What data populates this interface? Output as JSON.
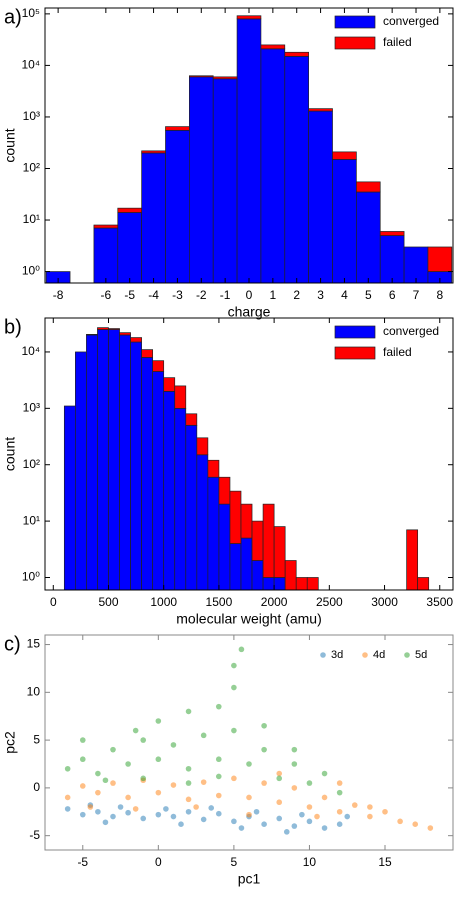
{
  "chart_data": [
    {
      "type": "histogram",
      "panel_label": "a)",
      "x_label": "charge",
      "y_label": "count",
      "stacked": true,
      "log_y": true,
      "legend": "upper right",
      "bins": [
        -8.5,
        -7.5,
        -6.5,
        -5.5,
        -4.5,
        -3.5,
        -2.5,
        -1.5,
        -0.5,
        0.5,
        1.5,
        2.5,
        3.5,
        4.5,
        5.5,
        6.5,
        7.5,
        8.5
      ],
      "series": [
        {
          "name": "converged",
          "color": "#0000ff",
          "values": [
            1,
            0,
            7,
            14,
            200,
            550,
            6000,
            5500,
            80000,
            21000,
            15000,
            1300,
            150,
            35,
            5,
            3,
            1
          ]
        },
        {
          "name": "failed",
          "color": "#ff0000",
          "values": [
            0,
            0,
            1,
            3,
            20,
            100,
            300,
            500,
            12000,
            4000,
            3000,
            150,
            60,
            20,
            1,
            0,
            2
          ]
        }
      ],
      "xlim": [
        -8.55,
        8.55
      ],
      "xticks": [
        -8,
        -6,
        -5,
        -4,
        -3,
        -2,
        -1,
        0,
        1,
        2,
        3,
        4,
        5,
        6,
        7,
        8
      ],
      "ylim": [
        0.6,
        130000
      ],
      "yticks": [
        {
          "value": 1,
          "label": "10⁰"
        },
        {
          "value": 10,
          "label": "10¹"
        },
        {
          "value": 100,
          "label": "10²"
        },
        {
          "value": 1000,
          "label": "10³"
        },
        {
          "value": 10000,
          "label": "10⁴"
        },
        {
          "value": 100000,
          "label": "10⁵"
        }
      ]
    },
    {
      "type": "histogram",
      "panel_label": "b)",
      "x_label": "molecular weight (amu)",
      "y_label": "count",
      "stacked": true,
      "log_y": true,
      "legend": "upper right",
      "bins": [
        100,
        200,
        300,
        400,
        500,
        600,
        700,
        800,
        900,
        1000,
        1100,
        1200,
        1300,
        1400,
        1500,
        1600,
        1700,
        1800,
        1900,
        2000,
        2100,
        2200,
        2300,
        2400,
        2500,
        2600,
        2700,
        2800,
        2900,
        3000,
        3100,
        3200,
        3300,
        3400,
        3500
      ],
      "series": [
        {
          "name": "converged",
          "color": "#0000ff",
          "values": [
            1100,
            10000,
            20000,
            25000,
            25000,
            20000,
            15000,
            8000,
            4500,
            2000,
            1000,
            500,
            150,
            60,
            20,
            4,
            5,
            2,
            1,
            1,
            0,
            0,
            0,
            0,
            0,
            0,
            0,
            0,
            0,
            0,
            0,
            0,
            0,
            0
          ]
        },
        {
          "name": "failed",
          "color": "#ff0000",
          "values": [
            0,
            0,
            500,
            2000,
            1000,
            2000,
            3000,
            3000,
            2500,
            1500,
            1500,
            300,
            150,
            60,
            40,
            30,
            15,
            8,
            19,
            7,
            2,
            1,
            1,
            0,
            0,
            0,
            0,
            0,
            0,
            0,
            0,
            7,
            1,
            0
          ]
        }
      ],
      "xlim": [
        -75,
        3620
      ],
      "xticks": [
        0,
        500,
        1000,
        1500,
        2000,
        2500,
        3000,
        3500
      ],
      "ylim": [
        0.6,
        40000
      ],
      "yticks": [
        {
          "value": 1,
          "label": "10⁰"
        },
        {
          "value": 10,
          "label": "10¹"
        },
        {
          "value": 100,
          "label": "10²"
        },
        {
          "value": 1000,
          "label": "10³"
        },
        {
          "value": 10000,
          "label": "10⁴"
        }
      ]
    },
    {
      "type": "scatter",
      "panel_label": "c)",
      "x_label": "pc1",
      "y_label": "pc2",
      "log_y": false,
      "legend": "upper right",
      "opacity": 0.5,
      "series": [
        {
          "name": "3d",
          "color": "#1f77b4",
          "x": [
            -6,
            -5,
            -4,
            -3,
            -2,
            -1,
            0,
            1,
            2,
            3,
            4,
            5,
            6,
            7,
            8,
            9,
            10,
            11,
            12,
            -4.5,
            -2.5,
            0.5,
            3.5,
            6.5,
            9.5,
            12.5,
            -3.5,
            1.5,
            5.5,
            8.5
          ],
          "y": [
            -2.2,
            -2.8,
            -2.5,
            -3,
            -2.6,
            -3.2,
            -2.8,
            -3,
            -2.5,
            -3.3,
            -2.7,
            -3.5,
            -3,
            -3.8,
            -3.2,
            -4,
            -3.5,
            -4.2,
            -3.8,
            -1.8,
            -2,
            -2.2,
            -2.1,
            -2.5,
            -2.8,
            -3,
            -3.6,
            -3.8,
            -4.2,
            -4.6
          ]
        },
        {
          "name": "4d",
          "color": "#ff7f0e",
          "x": [
            -6,
            -5,
            -4,
            -3,
            -2,
            -1,
            0,
            1,
            2,
            3,
            4,
            5,
            6,
            7,
            8,
            9,
            10,
            11,
            12,
            13,
            14,
            15,
            16,
            17,
            18,
            -4.5,
            -1.5,
            2.5,
            6,
            10.5,
            14,
            8,
            12
          ],
          "y": [
            -1,
            0.2,
            -0.5,
            0.5,
            -1,
            0.8,
            -0.5,
            0.3,
            -1.2,
            0.6,
            -0.8,
            1,
            -1,
            0.5,
            -1.5,
            0,
            -2,
            -1,
            -2.5,
            -1.8,
            -3,
            -2.5,
            -3.5,
            -3.8,
            -4.2,
            -2,
            -2.2,
            -2,
            -2.8,
            -3,
            -2,
            1.5,
            0.5
          ]
        },
        {
          "name": "5d",
          "color": "#2ca02c",
          "x": [
            -6,
            -5,
            -4,
            -3,
            -2,
            -1,
            0,
            1,
            2,
            3,
            4,
            5,
            6,
            7,
            8,
            9,
            10,
            11,
            12,
            -3.5,
            -1,
            2,
            4,
            0,
            2,
            4,
            5,
            5,
            5.5,
            -1.5,
            7,
            9,
            -5
          ],
          "y": [
            2,
            3,
            1.5,
            4,
            2.5,
            5,
            3,
            4.5,
            2,
            5.5,
            3,
            6,
            2.5,
            4,
            1,
            2.5,
            0.5,
            1.5,
            -0.5,
            0.8,
            1,
            0.5,
            1.2,
            7,
            8,
            8.5,
            10.5,
            12.8,
            14.5,
            6,
            6.5,
            4,
            5
          ]
        }
      ],
      "xlim": [
        -7.5,
        19.5
      ],
      "xticks": [
        -5,
        0,
        5,
        10,
        15
      ],
      "ylim": [
        -6.5,
        16
      ],
      "yticks": [
        -5,
        0,
        5,
        10,
        15
      ]
    }
  ]
}
